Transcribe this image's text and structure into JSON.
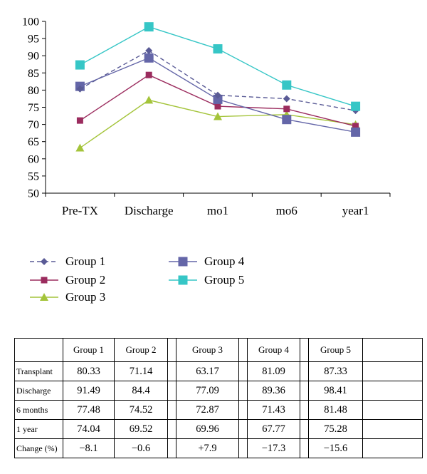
{
  "chart_data": {
    "type": "line",
    "categories": [
      "Pre-TX",
      "Discharge",
      "mo1",
      "mo6",
      "year1"
    ],
    "ylim": [
      50,
      100
    ],
    "yticks": [
      "50",
      "55",
      "60",
      "65",
      "70",
      "75",
      "80",
      "85",
      "90",
      "95",
      "100"
    ],
    "xlabel": "",
    "ylabel": "",
    "grid": false,
    "legend_position": "bottom",
    "series": [
      {
        "name": "Group 1",
        "values": [
          80.33,
          91.49,
          78.5,
          77.48,
          74.04
        ],
        "color": "#5a5b96",
        "marker": "diamond",
        "dash": true
      },
      {
        "name": "Group 2",
        "values": [
          71.14,
          84.4,
          75.3,
          74.52,
          69.52
        ],
        "color": "#9b2c5e",
        "marker": "square-small",
        "dash": false
      },
      {
        "name": "Group 3",
        "values": [
          63.17,
          77.09,
          72.3,
          72.87,
          69.96
        ],
        "color": "#a4c43a",
        "marker": "triangle",
        "dash": false
      },
      {
        "name": "Group 4",
        "values": [
          81.09,
          89.36,
          77.3,
          71.43,
          67.77
        ],
        "color": "#6466a8",
        "marker": "square",
        "dash": false
      },
      {
        "name": "Group 5",
        "values": [
          87.33,
          98.41,
          92.0,
          81.48,
          75.28
        ],
        "color": "#36c6c6",
        "marker": "square-cyan",
        "dash": false
      }
    ]
  },
  "table": {
    "headers": [
      "",
      "Group 1",
      "Group 2",
      "",
      "Group 3",
      "",
      "Group 4",
      "",
      "Group 5",
      ""
    ],
    "rows": [
      {
        "label": "Transplant",
        "values": [
          "80.33",
          "71.14",
          "",
          "63.17",
          "",
          "81.09",
          "",
          "87.33",
          ""
        ]
      },
      {
        "label": "Discharge",
        "values": [
          "91.49",
          "84.4",
          "",
          "77.09",
          "",
          "89.36",
          "",
          "98.41",
          ""
        ]
      },
      {
        "label": "6 months",
        "values": [
          "77.48",
          "74.52",
          "",
          "72.87",
          "",
          "71.43",
          "",
          "81.48",
          ""
        ]
      },
      {
        "label": "1 year",
        "values": [
          "74.04",
          "69.52",
          "",
          "69.96",
          "",
          "67.77",
          "",
          "75.28",
          ""
        ]
      },
      {
        "label": "Change (%)",
        "values": [
          "−8.1",
          "−0.6",
          "",
          "+7.9",
          "",
          "−17.3",
          "",
          "−15.6",
          ""
        ]
      }
    ]
  }
}
